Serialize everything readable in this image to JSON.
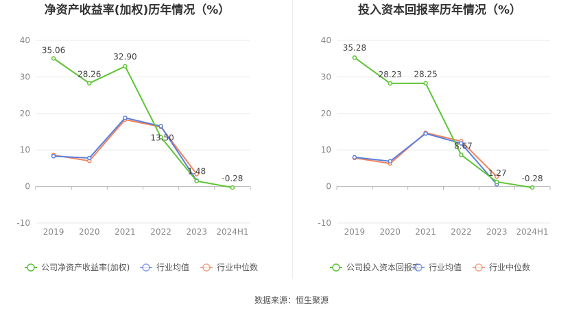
{
  "source": "数据来源：恒生聚源",
  "chart_data": [
    {
      "type": "line",
      "title": "净资产收益率(加权)历年情况（%）",
      "categories": [
        "2019",
        "2020",
        "2021",
        "2022",
        "2023",
        "2024H1"
      ],
      "ylim": [
        -10,
        40
      ],
      "yticks": [
        -10,
        0,
        10,
        20,
        30,
        40
      ],
      "grid": true,
      "legend_position": "bottom-left",
      "series": [
        {
          "name": "公司净资产收益率(加权)",
          "color": "#5ec435",
          "values": [
            35.06,
            28.26,
            32.9,
            13.5,
            1.48,
            -0.28
          ],
          "labels": [
            "35.06",
            "28.26",
            "32.90",
            "13.50",
            "1.48",
            "-0.28"
          ]
        },
        {
          "name": "行业均值",
          "color": "#5b7fde",
          "values": [
            8.3,
            7.8,
            18.8,
            16.5,
            1.6,
            null
          ]
        },
        {
          "name": "行业中位数",
          "color": "#f0825a",
          "values": [
            8.6,
            7.0,
            18.3,
            16.3,
            3.4,
            null
          ]
        }
      ]
    },
    {
      "type": "line",
      "title": "投入资本回报率历年情况（%）",
      "categories": [
        "2019",
        "2020",
        "2021",
        "2022",
        "2023",
        "2024H1"
      ],
      "ylim": [
        -10,
        40
      ],
      "yticks": [
        -10,
        0,
        10,
        20,
        30,
        40
      ],
      "grid": true,
      "legend_position": "bottom-left",
      "series": [
        {
          "name": "公司投入资本回报率",
          "color": "#5ec435",
          "values": [
            35.28,
            28.23,
            28.25,
            8.67,
            1.27,
            -0.28
          ],
          "labels": [
            "35.28",
            "28.23",
            "28.25",
            "8.67",
            "1.27",
            "-0.28"
          ]
        },
        {
          "name": "行业均值",
          "color": "#5b7fde",
          "values": [
            8.0,
            6.9,
            14.5,
            11.8,
            0.6,
            null
          ]
        },
        {
          "name": "行业中位数",
          "color": "#f0825a",
          "values": [
            7.8,
            6.3,
            14.7,
            12.4,
            2.7,
            null
          ]
        }
      ]
    }
  ]
}
